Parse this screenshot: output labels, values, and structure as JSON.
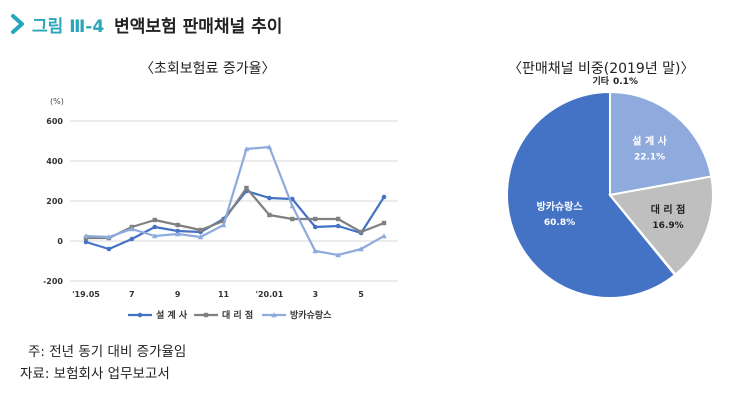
{
  "figure": {
    "number": "그림 Ⅲ-4",
    "title": "변액보험 판매채널 추이"
  },
  "left_subtitle": "〈초회보험료 증가율〉",
  "right_subtitle": "〈판매채널 비중(2019년 말)〉",
  "notes": {
    "note1": "주: 전년 동기 대비 증가율임",
    "note2": "자료: 보험회사 업무보고서"
  },
  "colors": {
    "series1": "#4472c4",
    "series2": "#808080",
    "series3": "#8faadc",
    "pie_bancassurance": "#4472c4",
    "pie_planner": "#8faadc",
    "pie_agency": "#bfbfbf",
    "pie_other": "#d9d9d9",
    "title_accent": "#2aa6b8"
  },
  "chart_data": [
    {
      "type": "line",
      "unit_label": "(%)",
      "ylim": [
        -200,
        600
      ],
      "yticks": [
        -200,
        0,
        200,
        400,
        600
      ],
      "categories": [
        "'19.05",
        "'19.06",
        "'19.07",
        "'19.08",
        "'19.09",
        "'19.10",
        "'19.11",
        "'19.12",
        "'20.01",
        "'20.02",
        "'20.03",
        "'20.04",
        "'20.05",
        "'20.06"
      ],
      "xtick_labels": [
        {
          "index": 0,
          "label": "'19.05"
        },
        {
          "index": 2,
          "label": "7"
        },
        {
          "index": 4,
          "label": "9"
        },
        {
          "index": 6,
          "label": "11"
        },
        {
          "index": 8,
          "label": "'20.01"
        },
        {
          "index": 10,
          "label": "3"
        },
        {
          "index": 12,
          "label": "5"
        }
      ],
      "grid": "horizontal",
      "legend_position": "bottom",
      "series": [
        {
          "name": "설 계 사",
          "values": [
            -5,
            -40,
            10,
            70,
            50,
            45,
            110,
            250,
            215,
            210,
            70,
            75,
            40,
            220
          ]
        },
        {
          "name": "대 리 점",
          "values": [
            15,
            15,
            70,
            105,
            80,
            55,
            100,
            265,
            130,
            110,
            110,
            110,
            45,
            90
          ]
        },
        {
          "name": "방카슈랑스",
          "values": [
            25,
            20,
            60,
            25,
            35,
            20,
            80,
            460,
            470,
            175,
            -50,
            -70,
            -40,
            25
          ]
        }
      ]
    },
    {
      "type": "pie",
      "slices": [
        {
          "label": "방카슈랑스",
          "value": 60.8,
          "value_label": "60.8%"
        },
        {
          "label": "설 계 사",
          "value": 22.1,
          "value_label": "22.1%"
        },
        {
          "label": "대 리 점",
          "value": 16.9,
          "value_label": "16.9%"
        },
        {
          "label": "기타",
          "value": 0.1,
          "value_label": "0.1%"
        }
      ]
    }
  ]
}
